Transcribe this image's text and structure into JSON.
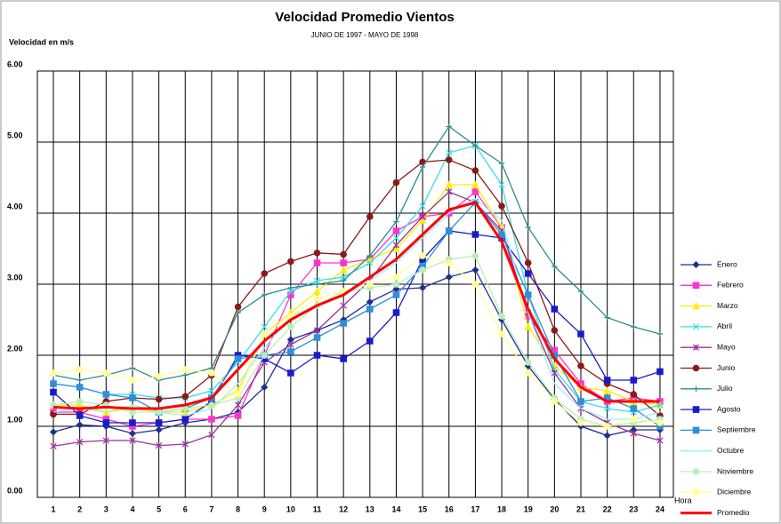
{
  "chart_data": {
    "type": "line",
    "title": "Velocidad Promedio Vientos",
    "subtitle": "JUNIO DE 1997 - MAYO DE 1998",
    "y_label": "Velocidad en m/s",
    "x_label": "Hora",
    "categories": [
      "1",
      "2",
      "3",
      "4",
      "5",
      "6",
      "7",
      "8",
      "9",
      "10",
      "11",
      "12",
      "13",
      "14",
      "15",
      "16",
      "17",
      "18",
      "19",
      "20",
      "21",
      "22",
      "23",
      "24"
    ],
    "ylim": [
      0,
      6
    ],
    "yticks": [
      {
        "value": 0,
        "label": "0.00"
      },
      {
        "value": 1,
        "label": "1.00"
      },
      {
        "value": 2,
        "label": "2.00"
      },
      {
        "value": 3,
        "label": "3.00"
      },
      {
        "value": 4,
        "label": "4.00"
      },
      {
        "value": 5,
        "label": "5.00"
      },
      {
        "value": 6,
        "label": "6.00"
      }
    ],
    "grid": true,
    "legend": "right",
    "series": [
      {
        "name": "Enero",
        "color": "#1f2f8f",
        "marker": "diamond",
        "values": [
          0.92,
          1.02,
          1.0,
          0.9,
          0.95,
          1.05,
          1.1,
          1.2,
          1.55,
          2.22,
          2.35,
          2.5,
          2.75,
          2.93,
          2.95,
          3.1,
          3.2,
          2.5,
          1.85,
          1.38,
          1.0,
          0.87,
          0.95,
          0.95
        ]
      },
      {
        "name": "Febrero",
        "color": "#ff33cc",
        "marker": "square",
        "values": [
          1.2,
          1.2,
          1.1,
          1.0,
          1.05,
          1.1,
          1.1,
          1.15,
          2.0,
          2.85,
          3.3,
          3.3,
          3.35,
          3.75,
          3.95,
          4.0,
          4.3,
          3.8,
          2.55,
          2.07,
          1.6,
          1.35,
          1.4,
          1.35
        ]
      },
      {
        "name": "Marzo",
        "color": "#ffee00",
        "marker": "triangle",
        "values": [
          1.3,
          1.3,
          1.2,
          1.25,
          1.2,
          1.2,
          1.3,
          1.5,
          2.3,
          2.6,
          2.9,
          3.2,
          3.35,
          3.5,
          3.9,
          4.4,
          4.4,
          3.8,
          2.4,
          1.85,
          1.55,
          1.5,
          1.35,
          1.3
        ]
      },
      {
        "name": "Abril",
        "color": "#33ddee",
        "marker": "cross",
        "values": [
          1.6,
          1.55,
          1.45,
          1.45,
          1.4,
          1.4,
          1.5,
          1.9,
          2.4,
          2.9,
          3.05,
          3.1,
          3.3,
          3.65,
          4.1,
          4.85,
          4.95,
          4.4,
          2.85,
          1.8,
          1.35,
          1.25,
          1.2,
          1.3
        ]
      },
      {
        "name": "Mayo",
        "color": "#993399",
        "marker": "asterisk",
        "values": [
          0.72,
          0.78,
          0.8,
          0.8,
          0.73,
          0.75,
          0.88,
          1.3,
          1.9,
          2.15,
          2.35,
          2.7,
          3.05,
          3.55,
          3.95,
          4.3,
          4.15,
          3.75,
          2.6,
          1.75,
          1.25,
          1.05,
          0.9,
          0.8
        ]
      },
      {
        "name": "Junio",
        "color": "#8b1a1a",
        "marker": "circle",
        "values": [
          1.17,
          1.17,
          1.35,
          1.4,
          1.38,
          1.42,
          1.72,
          2.68,
          3.15,
          3.32,
          3.44,
          3.42,
          3.95,
          4.43,
          4.72,
          4.75,
          4.6,
          4.1,
          3.3,
          2.35,
          1.85,
          1.6,
          1.45,
          1.15
        ]
      },
      {
        "name": "Julio",
        "color": "#2e8b8b",
        "marker": "plus",
        "values": [
          1.72,
          1.65,
          1.72,
          1.82,
          1.65,
          1.72,
          1.82,
          2.6,
          2.85,
          2.95,
          3.0,
          3.05,
          3.4,
          3.88,
          4.65,
          5.22,
          4.95,
          4.7,
          3.8,
          3.25,
          2.9,
          2.53,
          2.4,
          2.3
        ]
      },
      {
        "name": "Agosto",
        "color": "#1a1acc",
        "marker": "square",
        "values": [
          1.48,
          1.15,
          1.05,
          1.05,
          1.05,
          1.1,
          1.35,
          2.0,
          1.95,
          1.75,
          2.0,
          1.95,
          2.2,
          2.6,
          3.35,
          3.75,
          3.7,
          3.65,
          3.15,
          2.65,
          2.3,
          1.65,
          1.65,
          1.77
        ]
      },
      {
        "name": "Septiembre",
        "color": "#2f8fd8",
        "marker": "square",
        "values": [
          1.6,
          1.55,
          1.45,
          1.4,
          1.2,
          1.25,
          1.4,
          1.95,
          2.0,
          2.05,
          2.25,
          2.45,
          2.65,
          2.85,
          3.25,
          3.75,
          4.15,
          3.7,
          2.85,
          2.0,
          1.35,
          1.4,
          1.25,
          1.0
        ]
      },
      {
        "name": "Octubre",
        "color": "#99eeff",
        "marker": "none",
        "values": [
          1.2,
          1.25,
          1.2,
          1.3,
          1.2,
          1.15,
          1.25,
          1.6,
          2.1,
          2.55,
          2.7,
          2.85,
          3.05,
          3.3,
          3.65,
          4.0,
          4.2,
          3.9,
          2.6,
          1.6,
          1.25,
          1.1,
          1.1,
          1.2
        ]
      },
      {
        "name": "Noviembre",
        "color": "#bbeebb",
        "marker": "circle",
        "values": [
          1.3,
          1.35,
          1.3,
          1.2,
          1.2,
          1.25,
          1.3,
          1.4,
          2.0,
          2.4,
          2.7,
          2.9,
          2.95,
          3.0,
          3.2,
          3.35,
          3.4,
          2.55,
          1.9,
          1.4,
          1.1,
          1.0,
          1.05,
          1.1
        ]
      },
      {
        "name": "Diciembre",
        "color": "#ffff99",
        "marker": "circle",
        "values": [
          1.75,
          1.8,
          1.75,
          1.65,
          1.7,
          1.8,
          1.75,
          1.45,
          2.3,
          2.55,
          2.8,
          2.9,
          3.0,
          3.1,
          3.4,
          3.3,
          3.0,
          2.3,
          1.75,
          1.35,
          1.05,
          1.0,
          1.1,
          1.05
        ]
      },
      {
        "name": "Promedio",
        "color": "#ff0000",
        "marker": "none",
        "width": 3,
        "values": [
          1.27,
          1.25,
          1.27,
          1.25,
          1.25,
          1.3,
          1.4,
          1.8,
          2.2,
          2.5,
          2.7,
          2.85,
          3.1,
          3.35,
          3.7,
          4.05,
          4.15,
          3.6,
          2.65,
          1.95,
          1.55,
          1.35,
          1.35,
          1.35
        ]
      }
    ]
  }
}
